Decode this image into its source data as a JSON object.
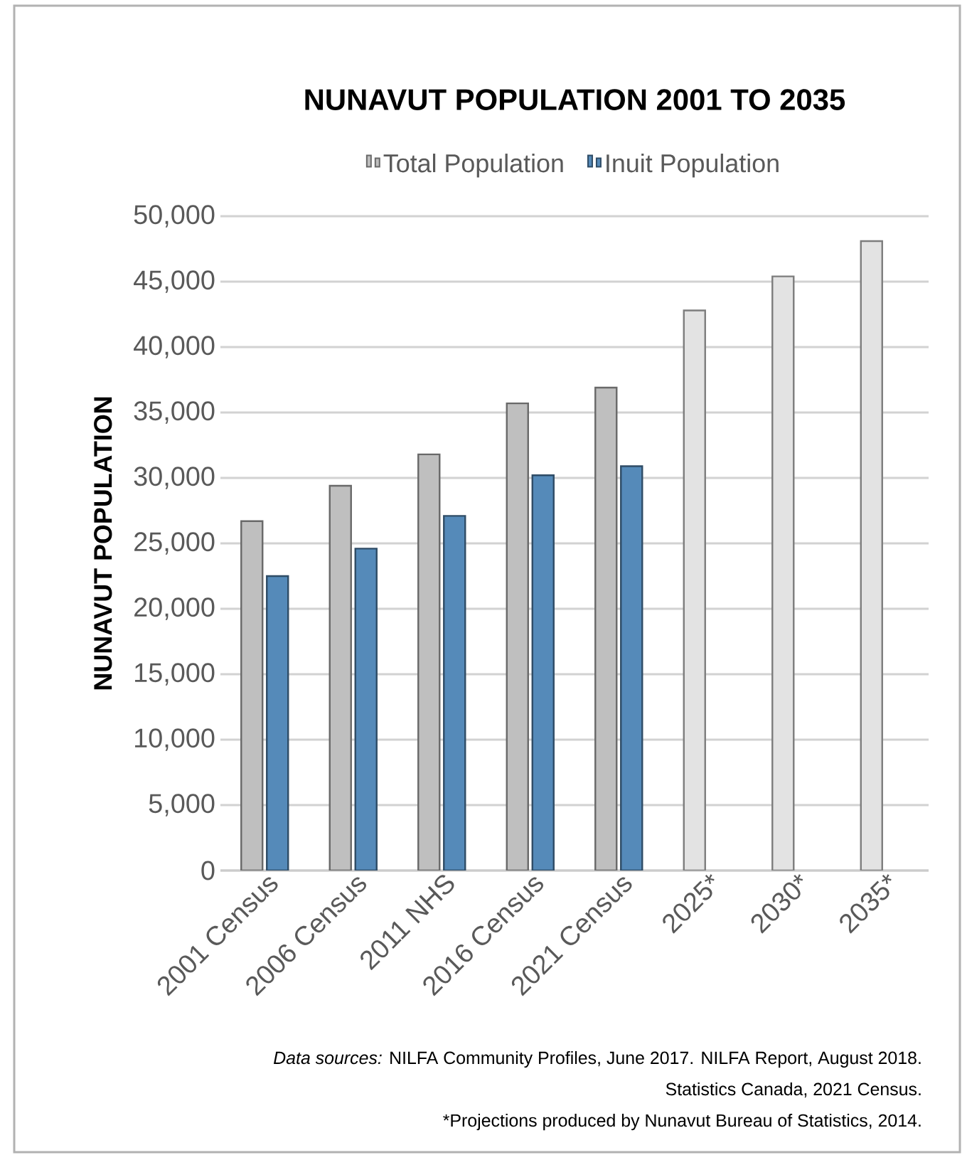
{
  "chart_data": {
    "type": "bar",
    "title": "NUNAVUT POPULATION 2001 TO 2035",
    "ylabel": "NUNAVUT POPULATION",
    "categories": [
      "2001 Census",
      "2006 Census",
      "2011 NHS",
      "2016 Census",
      "2021 Census",
      "2025*",
      "2030*",
      "2035*"
    ],
    "series": [
      {
        "name": "Total Population",
        "color": "#bfbfbf",
        "colors": [
          "#bfbfbf",
          "#bfbfbf",
          "#bfbfbf",
          "#bfbfbf",
          "#bfbfbf",
          "#e3e3e3",
          "#e3e3e3",
          "#e3e3e3"
        ],
        "values": [
          26700,
          29400,
          31800,
          35700,
          36900,
          42800,
          45400,
          48100
        ]
      },
      {
        "name": "Inuit Population",
        "color": "#558ab9",
        "values": [
          22500,
          24600,
          27100,
          30200,
          30900,
          null,
          null,
          null
        ]
      }
    ],
    "ylim": [
      0,
      50000
    ],
    "yticks": [
      {
        "value": 0,
        "label": "0"
      },
      {
        "value": 5000,
        "label": "5,000"
      },
      {
        "value": 10000,
        "label": "10,000"
      },
      {
        "value": 15000,
        "label": "15,000"
      },
      {
        "value": 20000,
        "label": "20,000"
      },
      {
        "value": 25000,
        "label": "25,000"
      },
      {
        "value": 30000,
        "label": "30,000"
      },
      {
        "value": 35000,
        "label": "35,000"
      },
      {
        "value": 40000,
        "label": "40,000"
      },
      {
        "value": 45000,
        "label": "45,000"
      },
      {
        "value": 50000,
        "label": "50,000"
      }
    ],
    "grid": "y",
    "legend": "top",
    "annotations": [
      "*Data sources:* NILFA Community Profiles, June 2017. NILFA Report, August 2018.",
      "Statistics Canada, 2021 Census.",
      "*Projections produced by Nunavut Bureau of Statistics, 2014."
    ]
  }
}
